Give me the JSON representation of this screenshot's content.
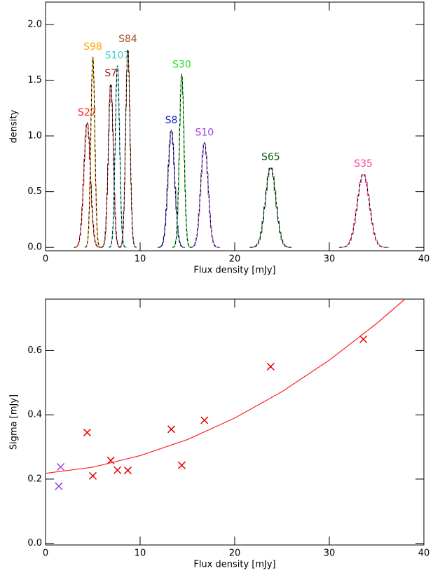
{
  "chart_data": [
    {
      "type": "histogram",
      "xlabel": "Flux density [mJy]",
      "ylabel": "density",
      "xlim": [
        0,
        40
      ],
      "xticks": [
        0,
        10,
        20,
        30,
        40
      ],
      "ylim": [
        -0.03,
        2.2
      ],
      "yticks": [
        {
          "value": 0,
          "label": "0.0"
        },
        {
          "value": 0.5,
          "label": "0.5"
        },
        {
          "value": 1,
          "label": "1.0"
        },
        {
          "value": 1.5,
          "label": "1.5"
        },
        {
          "value": 2,
          "label": "2.0"
        }
      ],
      "series": [
        {
          "name": "S27",
          "color": "#ff2020",
          "mean": 4.4,
          "peak": 1.12,
          "sigma": 0.345
        },
        {
          "name": "S98",
          "color": "#ffa500",
          "mean": 5.0,
          "peak": 1.71,
          "sigma": 0.21
        },
        {
          "name": "S7",
          "color": "#b22222",
          "mean": 6.9,
          "peak": 1.47,
          "sigma": 0.258
        },
        {
          "name": "S107",
          "color": "#40d0d0",
          "mean": 7.6,
          "peak": 1.63,
          "sigma": 0.228
        },
        {
          "name": "S84",
          "color": "#a0522d",
          "mean": 8.7,
          "peak": 1.78,
          "sigma": 0.227
        },
        {
          "name": "S8",
          "color": "#2020c0",
          "mean": 13.3,
          "peak": 1.05,
          "sigma": 0.355
        },
        {
          "name": "S30",
          "color": "#20e020",
          "mean": 14.4,
          "peak": 1.55,
          "sigma": 0.243
        },
        {
          "name": "S10",
          "color": "#a040e0",
          "mean": 16.8,
          "peak": 0.94,
          "sigma": 0.383
        },
        {
          "name": "S65",
          "color": "#106010",
          "mean": 23.8,
          "peak": 0.72,
          "sigma": 0.55
        },
        {
          "name": "S35",
          "color": "#ff40a0",
          "mean": 33.6,
          "peak": 0.66,
          "sigma": 0.635
        }
      ]
    },
    {
      "type": "scatter",
      "xlabel": "Flux density [mJy]",
      "ylabel": "Sigma [mJy]",
      "xlim": [
        0,
        40
      ],
      "xticks": [
        0,
        10,
        20,
        30,
        40
      ],
      "ylim": [
        -0.005,
        0.76
      ],
      "yticks": [
        {
          "value": 0,
          "label": "0.0"
        },
        {
          "value": 0.2,
          "label": "0.2"
        },
        {
          "value": 0.4,
          "label": "0.4"
        },
        {
          "value": 0.6,
          "label": "0.6"
        }
      ],
      "series": [
        {
          "style": "x",
          "color": "#e00000",
          "x": [
            4.4,
            5.0,
            6.9,
            7.6,
            8.7,
            13.3,
            14.4,
            16.8,
            23.8,
            33.6
          ],
          "values": [
            0.345,
            0.21,
            0.258,
            0.228,
            0.227,
            0.355,
            0.243,
            0.383,
            0.55,
            0.635
          ]
        },
        {
          "style": "x",
          "color": "#a040e0",
          "x": [
            1.4,
            1.6
          ],
          "values": [
            0.178,
            0.238
          ]
        },
        {
          "style": "line",
          "color": "#ff2020",
          "x": [
            0,
            5,
            10,
            15,
            20,
            25,
            30,
            35,
            38
          ],
          "values": [
            0.218,
            0.237,
            0.273,
            0.323,
            0.39,
            0.472,
            0.57,
            0.684,
            0.76
          ]
        }
      ]
    }
  ]
}
